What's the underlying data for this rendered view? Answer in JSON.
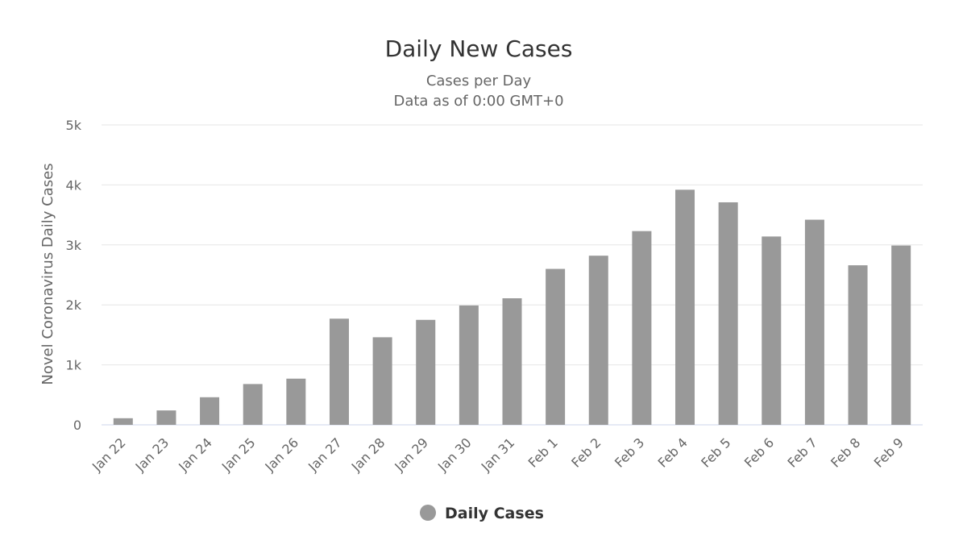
{
  "chart_data": {
    "type": "bar",
    "title": "Daily New Cases",
    "subtitle": [
      "Cases per Day",
      "Data as of 0:00 GMT+0"
    ],
    "xlabel": "",
    "ylabel": "Novel Coronavirus Daily Cases",
    "ylim": [
      0,
      5000
    ],
    "yticks": [
      0,
      1000,
      2000,
      3000,
      4000,
      5000
    ],
    "ytick_labels": [
      "0",
      "1k",
      "2k",
      "3k",
      "4k",
      "5k"
    ],
    "grid": true,
    "legend_position": "bottom",
    "categories": [
      "Jan 22",
      "Jan 23",
      "Jan 24",
      "Jan 25",
      "Jan 26",
      "Jan 27",
      "Jan 28",
      "Jan 29",
      "Jan 30",
      "Jan 31",
      "Feb 1",
      "Feb 2",
      "Feb 3",
      "Feb 4",
      "Feb 5",
      "Feb 6",
      "Feb 7",
      "Feb 8",
      "Feb 9"
    ],
    "series": [
      {
        "name": "Daily Cases",
        "color": "#999999",
        "values": [
          110,
          240,
          460,
          680,
          770,
          1770,
          1460,
          1750,
          1990,
          2110,
          2600,
          2820,
          3230,
          3920,
          3710,
          3140,
          3420,
          2660,
          2990
        ]
      }
    ]
  }
}
